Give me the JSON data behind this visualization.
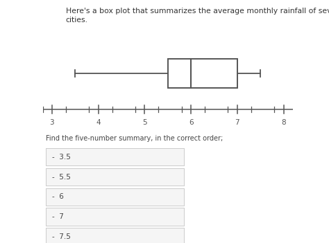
{
  "title": "Here's a box plot that summarizes the average monthly rainfall of several\ncities.",
  "min_val": 3.5,
  "q1": 5.5,
  "median": 6.0,
  "q3": 7.0,
  "max_val": 7.5,
  "xlim_min": 2.8,
  "xlim_max": 8.2,
  "xticks": [
    3,
    4,
    5,
    6,
    7,
    8
  ],
  "bg_color": "#ffffff",
  "box_color": "#ffffff",
  "edge_color": "#555555",
  "line_color": "#555555",
  "question_text": "Find the five-number summary, in the correct order;",
  "answers": [
    "3.5",
    "5.5",
    "6",
    "7",
    "7.5"
  ],
  "answer_box_bg": "#f5f5f5",
  "answer_box_edge": "#cccccc",
  "text_color": "#444444",
  "title_color": "#333333",
  "title_fontsize": 7.8,
  "question_fontsize": 7.0,
  "answer_fontsize": 7.5,
  "tick_label_fontsize": 7.5
}
